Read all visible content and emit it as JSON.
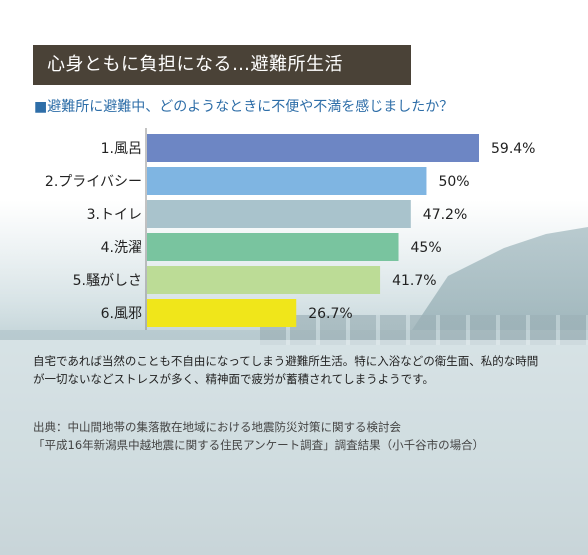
{
  "title": "心身ともに負担になる…避難所生活",
  "question": "■避難所に避難中、どのようなときに不便や不満を感じましたか？",
  "chart_data": {
    "type": "bar",
    "orientation": "horizontal",
    "categories": [
      "1.風呂",
      "2.プライバシー",
      "3.トイレ",
      "4.洗濯",
      "5.騒がしさ",
      "6.風邪"
    ],
    "values": [
      59.4,
      50,
      47.2,
      45,
      41.7,
      26.7
    ],
    "value_labels": [
      "59.4%",
      "50%",
      "47.2%",
      "45%",
      "41.7%",
      "26.7%"
    ],
    "colors": [
      "#6d86c4",
      "#7fb5e2",
      "#a9c3cc",
      "#79c49f",
      "#bcdc96",
      "#f0e61a"
    ],
    "title": "",
    "xlabel": "",
    "ylabel": "",
    "xlim": [
      0,
      80
    ],
    "grid": false,
    "legend": "none"
  },
  "note": "自宅であれば当然のことも不自由になってしまう避難所生活。特に入浴などの衛生面、私的な時間が一切ないなどストレスが多く、精神面で疲労が蓄積されてしまうようです。",
  "source_line1": "出典：中山間地帯の集落散在地域における地震防災対策に関する検討会",
  "source_line2": "「平成16年新潟県中越地震に関する住民アンケート調査」調査結果（小千谷市の場合）"
}
